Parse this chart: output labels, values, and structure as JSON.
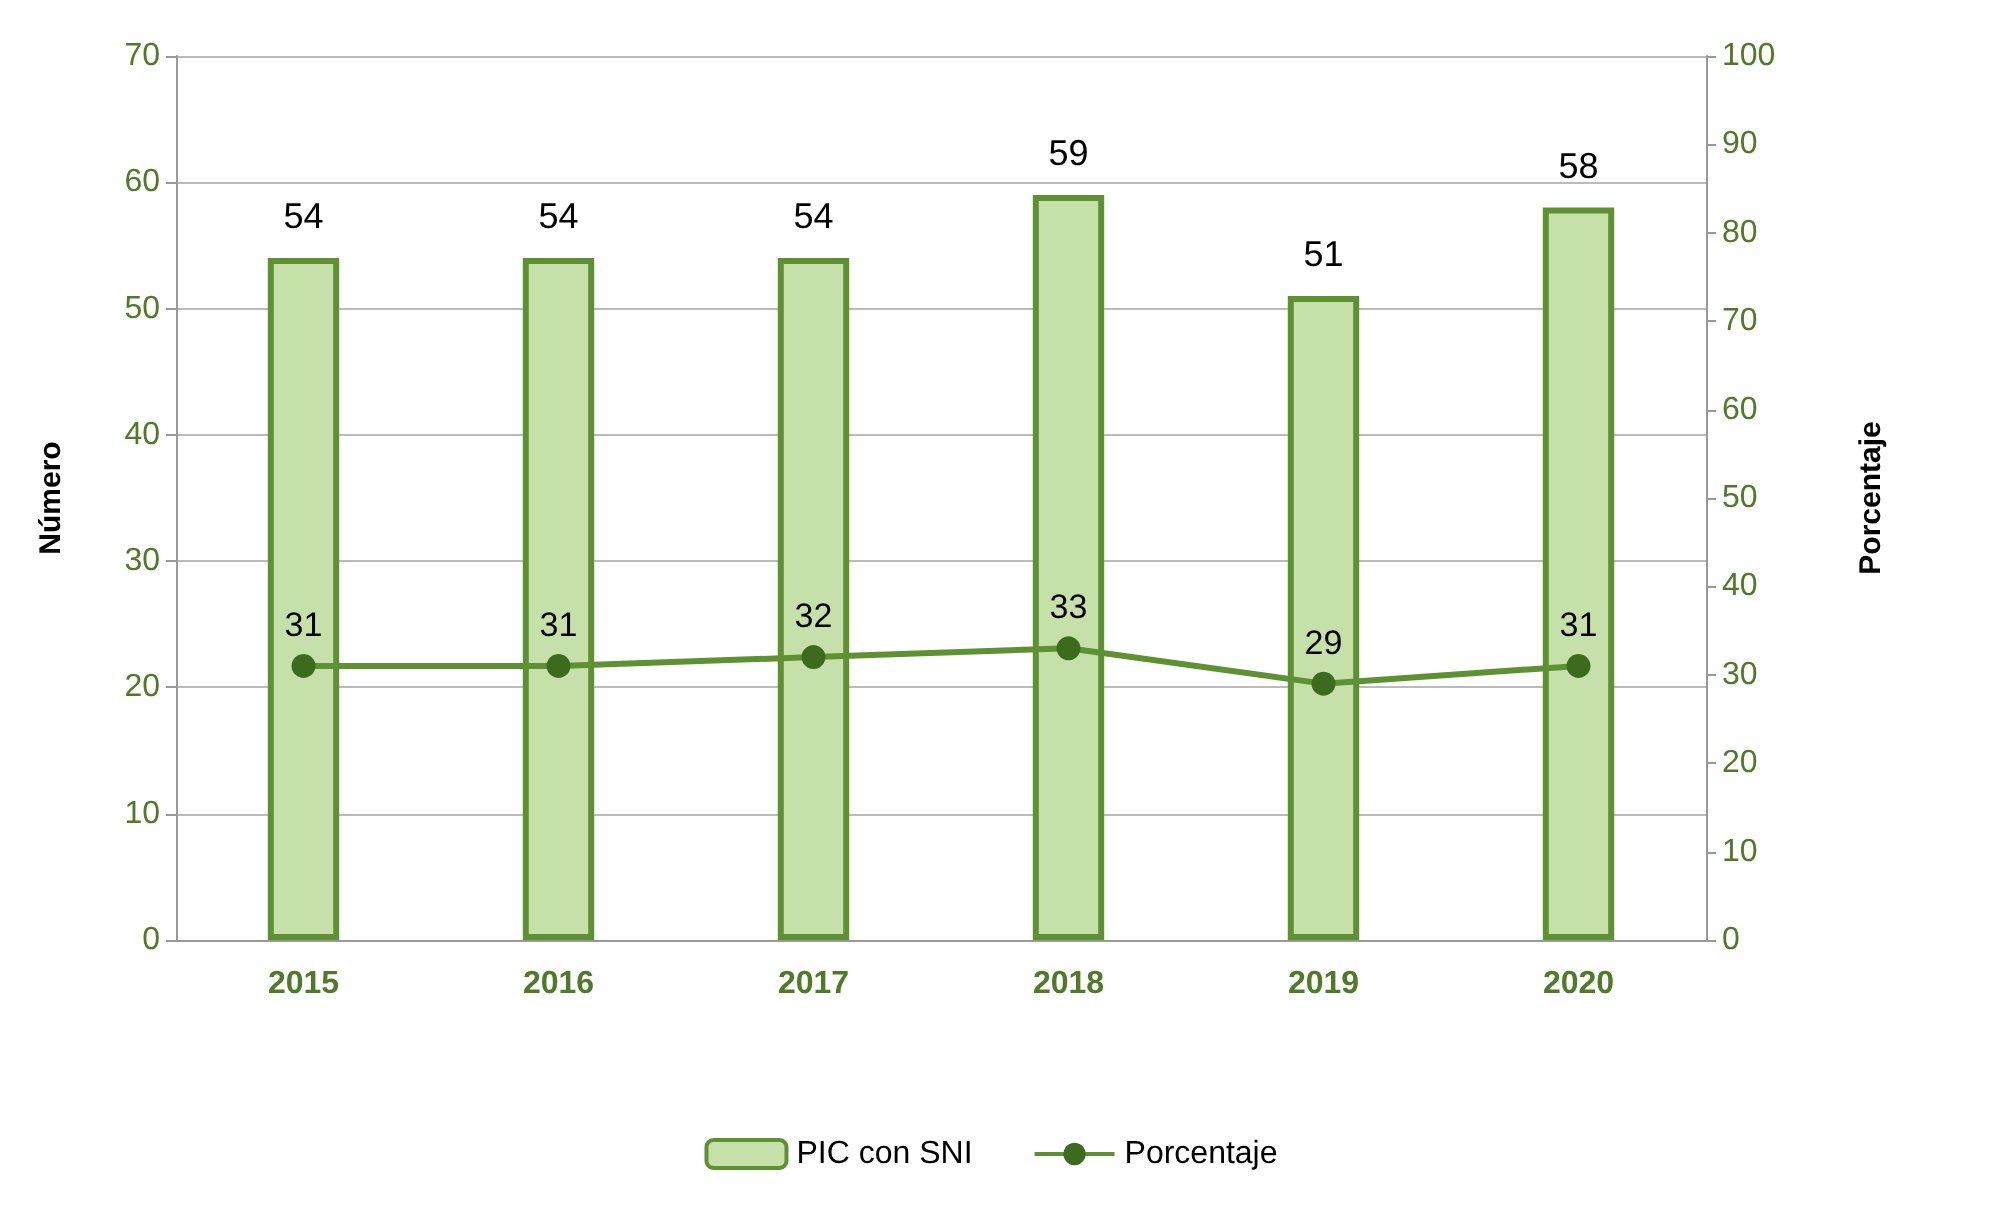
{
  "chart_data": {
    "type": "bar",
    "categories": [
      "2015",
      "2016",
      "2017",
      "2018",
      "2019",
      "2020"
    ],
    "series": [
      {
        "name": "PIC con SNI",
        "color": "#c5e0a8",
        "values": [
          54,
          54,
          54,
          59,
          51,
          58
        ]
      },
      {
        "name": "Porcentaje",
        "type": "line",
        "axis": "y2",
        "color": "#5e9132",
        "values": [
          31,
          31,
          32,
          33,
          29,
          31
        ]
      }
    ],
    "ylabel": "Número",
    "y2label": "Porcentaje",
    "ylim": [
      0,
      70
    ],
    "yticks": [
      0,
      10,
      20,
      30,
      40,
      50,
      60,
      70
    ],
    "y2lim": [
      0,
      100
    ],
    "y2ticks": [
      0,
      10,
      20,
      30,
      40,
      50,
      60,
      70,
      80,
      90,
      100
    ],
    "grid": "y",
    "legend": "bottom",
    "data_labels": true,
    "marker": "circle",
    "line_style": "solid"
  }
}
